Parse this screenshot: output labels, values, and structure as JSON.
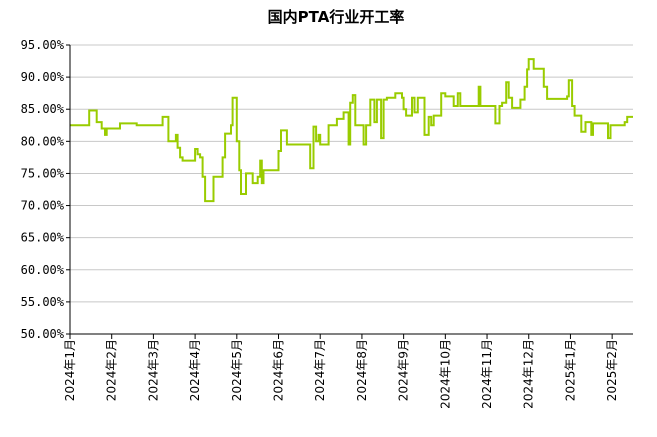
{
  "chart_data": {
    "type": "line",
    "title": "国内PTA行业开工率",
    "xlabel": "",
    "ylabel": "",
    "ylim": [
      50,
      95
    ],
    "yticks": [
      "50.00%",
      "55.00%",
      "60.00%",
      "65.00%",
      "70.00%",
      "75.00%",
      "80.00%",
      "85.00%",
      "90.00%",
      "95.00%"
    ],
    "ytick_values": [
      50,
      55,
      60,
      65,
      70,
      75,
      80,
      85,
      90,
      95
    ],
    "grid": true,
    "legend": "none",
    "x_range_months": [
      0,
      13.5
    ],
    "x_month_ticks": [
      {
        "label": "2024年1月",
        "m": 0
      },
      {
        "label": "2024年2月",
        "m": 1
      },
      {
        "label": "2024年3月",
        "m": 2
      },
      {
        "label": "2024年4月",
        "m": 3
      },
      {
        "label": "2024年5月",
        "m": 4
      },
      {
        "label": "2024年6月",
        "m": 5
      },
      {
        "label": "2024年7月",
        "m": 6
      },
      {
        "label": "2024年8月",
        "m": 7
      },
      {
        "label": "2024年9月",
        "m": 8
      },
      {
        "label": "2024年10月",
        "m": 9
      },
      {
        "label": "2024年11月",
        "m": 10
      },
      {
        "label": "2024年12月",
        "m": 11
      },
      {
        "label": "2025年1月",
        "m": 12
      },
      {
        "label": "2025年2月",
        "m": 13
      }
    ],
    "series": [
      {
        "color": "#99cc00",
        "points": [
          [
            0.0,
            82.5
          ],
          [
            0.46,
            82.5
          ],
          [
            0.46,
            84.8
          ],
          [
            0.64,
            84.8
          ],
          [
            0.64,
            83.0
          ],
          [
            0.76,
            83.0
          ],
          [
            0.76,
            82.0
          ],
          [
            0.84,
            82.0
          ],
          [
            0.84,
            81.0
          ],
          [
            0.88,
            81.0
          ],
          [
            0.88,
            82.0
          ],
          [
            1.2,
            82.0
          ],
          [
            1.2,
            82.8
          ],
          [
            1.6,
            82.8
          ],
          [
            1.6,
            82.5
          ],
          [
            2.22,
            82.5
          ],
          [
            2.22,
            83.8
          ],
          [
            2.36,
            83.8
          ],
          [
            2.36,
            80.0
          ],
          [
            2.54,
            80.0
          ],
          [
            2.54,
            81.0
          ],
          [
            2.58,
            81.0
          ],
          [
            2.58,
            79.0
          ],
          [
            2.64,
            79.0
          ],
          [
            2.64,
            77.5
          ],
          [
            2.7,
            77.5
          ],
          [
            2.7,
            77.0
          ],
          [
            3.0,
            77.0
          ],
          [
            3.0,
            78.8
          ],
          [
            3.06,
            78.8
          ],
          [
            3.06,
            78.0
          ],
          [
            3.12,
            78.0
          ],
          [
            3.12,
            77.5
          ],
          [
            3.18,
            77.5
          ],
          [
            3.18,
            74.5
          ],
          [
            3.24,
            74.5
          ],
          [
            3.24,
            70.7
          ],
          [
            3.44,
            70.7
          ],
          [
            3.44,
            74.5
          ],
          [
            3.66,
            74.5
          ],
          [
            3.66,
            77.5
          ],
          [
            3.72,
            77.5
          ],
          [
            3.72,
            81.2
          ],
          [
            3.86,
            81.2
          ],
          [
            3.86,
            82.5
          ],
          [
            3.9,
            82.5
          ],
          [
            3.9,
            86.8
          ],
          [
            4.0,
            86.8
          ],
          [
            4.0,
            80.0
          ],
          [
            4.06,
            80.0
          ],
          [
            4.06,
            75.5
          ],
          [
            4.1,
            75.5
          ],
          [
            4.1,
            71.8
          ],
          [
            4.22,
            71.8
          ],
          [
            4.22,
            75.0
          ],
          [
            4.38,
            75.0
          ],
          [
            4.38,
            73.5
          ],
          [
            4.5,
            73.5
          ],
          [
            4.5,
            74.5
          ],
          [
            4.56,
            74.5
          ],
          [
            4.56,
            77.0
          ],
          [
            4.6,
            77.0
          ],
          [
            4.6,
            73.5
          ],
          [
            4.64,
            73.5
          ],
          [
            4.64,
            75.5
          ],
          [
            5.0,
            75.5
          ],
          [
            5.0,
            78.5
          ],
          [
            5.06,
            78.5
          ],
          [
            5.06,
            81.7
          ],
          [
            5.2,
            81.7
          ],
          [
            5.2,
            79.5
          ],
          [
            5.76,
            79.5
          ],
          [
            5.76,
            75.8
          ],
          [
            5.84,
            75.8
          ],
          [
            5.84,
            82.3
          ],
          [
            5.9,
            82.3
          ],
          [
            5.9,
            80.0
          ],
          [
            5.96,
            80.0
          ],
          [
            5.96,
            81.0
          ],
          [
            6.0,
            81.0
          ],
          [
            6.0,
            79.5
          ],
          [
            6.2,
            79.5
          ],
          [
            6.2,
            82.5
          ],
          [
            6.4,
            82.5
          ],
          [
            6.4,
            83.5
          ],
          [
            6.56,
            83.5
          ],
          [
            6.56,
            84.5
          ],
          [
            6.68,
            84.5
          ],
          [
            6.68,
            79.5
          ],
          [
            6.72,
            79.5
          ],
          [
            6.72,
            86.0
          ],
          [
            6.78,
            86.0
          ],
          [
            6.78,
            87.2
          ],
          [
            6.84,
            87.2
          ],
          [
            6.84,
            82.5
          ],
          [
            7.04,
            82.5
          ],
          [
            7.04,
            79.5
          ],
          [
            7.1,
            79.5
          ],
          [
            7.1,
            82.5
          ],
          [
            7.2,
            82.5
          ],
          [
            7.2,
            86.5
          ],
          [
            7.3,
            86.5
          ],
          [
            7.3,
            83.0
          ],
          [
            7.36,
            83.0
          ],
          [
            7.36,
            86.5
          ],
          [
            7.46,
            86.5
          ],
          [
            7.46,
            80.5
          ],
          [
            7.52,
            80.5
          ],
          [
            7.52,
            86.5
          ],
          [
            7.6,
            86.5
          ],
          [
            7.6,
            86.8
          ],
          [
            7.8,
            86.8
          ],
          [
            7.8,
            87.5
          ],
          [
            7.96,
            87.5
          ],
          [
            7.96,
            86.8
          ],
          [
            8.0,
            86.8
          ],
          [
            8.0,
            85.0
          ],
          [
            8.06,
            85.0
          ],
          [
            8.06,
            84.0
          ],
          [
            8.2,
            84.0
          ],
          [
            8.2,
            86.8
          ],
          [
            8.26,
            86.8
          ],
          [
            8.26,
            84.5
          ],
          [
            8.34,
            84.5
          ],
          [
            8.34,
            86.8
          ],
          [
            8.5,
            86.8
          ],
          [
            8.5,
            81.0
          ],
          [
            8.6,
            81.0
          ],
          [
            8.6,
            83.8
          ],
          [
            8.66,
            83.8
          ],
          [
            8.66,
            82.5
          ],
          [
            8.72,
            82.5
          ],
          [
            8.72,
            84.0
          ],
          [
            8.9,
            84.0
          ],
          [
            8.9,
            87.5
          ],
          [
            9.0,
            87.5
          ],
          [
            9.0,
            87.0
          ],
          [
            9.2,
            87.0
          ],
          [
            9.2,
            85.5
          ],
          [
            9.3,
            85.5
          ],
          [
            9.3,
            87.5
          ],
          [
            9.36,
            87.5
          ],
          [
            9.36,
            85.5
          ],
          [
            9.8,
            85.5
          ],
          [
            9.8,
            88.5
          ],
          [
            9.84,
            88.5
          ],
          [
            9.84,
            85.5
          ],
          [
            10.2,
            85.5
          ],
          [
            10.2,
            82.8
          ],
          [
            10.3,
            82.8
          ],
          [
            10.3,
            85.5
          ],
          [
            10.36,
            85.5
          ],
          [
            10.36,
            86.0
          ],
          [
            10.46,
            86.0
          ],
          [
            10.46,
            89.2
          ],
          [
            10.52,
            89.2
          ],
          [
            10.52,
            86.8
          ],
          [
            10.6,
            86.8
          ],
          [
            10.6,
            85.2
          ],
          [
            10.8,
            85.2
          ],
          [
            10.8,
            86.5
          ],
          [
            10.9,
            86.5
          ],
          [
            10.9,
            88.5
          ],
          [
            10.96,
            88.5
          ],
          [
            10.96,
            91.2
          ],
          [
            11.0,
            91.2
          ],
          [
            11.0,
            92.8
          ],
          [
            11.12,
            92.8
          ],
          [
            11.12,
            91.3
          ],
          [
            11.36,
            91.3
          ],
          [
            11.36,
            88.5
          ],
          [
            11.44,
            88.5
          ],
          [
            11.44,
            86.6
          ],
          [
            11.92,
            86.6
          ],
          [
            11.92,
            87.0
          ],
          [
            11.96,
            87.0
          ],
          [
            11.96,
            89.5
          ],
          [
            12.04,
            89.5
          ],
          [
            12.04,
            85.5
          ],
          [
            12.1,
            85.5
          ],
          [
            12.1,
            84.0
          ],
          [
            12.26,
            84.0
          ],
          [
            12.26,
            81.5
          ],
          [
            12.36,
            81.5
          ],
          [
            12.36,
            83.0
          ],
          [
            12.5,
            83.0
          ],
          [
            12.5,
            81.0
          ],
          [
            12.54,
            81.0
          ],
          [
            12.54,
            82.8
          ],
          [
            12.9,
            82.8
          ],
          [
            12.9,
            80.5
          ],
          [
            12.96,
            80.5
          ],
          [
            12.96,
            82.5
          ],
          [
            13.3,
            82.5
          ],
          [
            13.3,
            83.0
          ],
          [
            13.36,
            83.0
          ],
          [
            13.36,
            83.8
          ],
          [
            13.5,
            83.8
          ]
        ]
      }
    ]
  }
}
